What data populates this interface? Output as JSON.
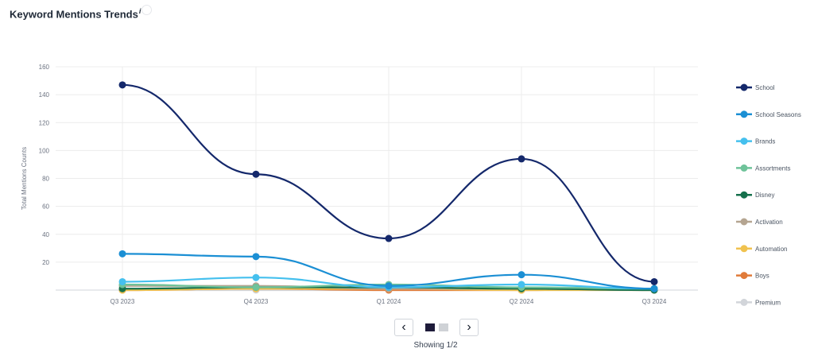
{
  "title": "Keyword Mentions Trends",
  "info_mark": "i",
  "pagination": {
    "showing": "Showing 1/2",
    "prev_icon": "chevron-left-icon",
    "next_icon": "chevron-right-icon",
    "current_page": 1,
    "total_pages": 2
  },
  "chart_data": {
    "type": "line",
    "ylabel": "Total Mentions Counts",
    "xlabel": "",
    "categories": [
      "Q3 2023",
      "Q4 2023",
      "Q1 2024",
      "Q2 2024",
      "Q3 2024"
    ],
    "ylim": [
      0,
      160
    ],
    "yticks": [
      20,
      40,
      60,
      80,
      100,
      120,
      140,
      160
    ],
    "grid": true,
    "legend_position": "right",
    "series": [
      {
        "name": "School",
        "color": "#14286b",
        "values": [
          147,
          83,
          37,
          94,
          6
        ]
      },
      {
        "name": "School Seasons",
        "color": "#1b8fd4",
        "values": [
          26,
          24,
          3,
          11,
          1
        ]
      },
      {
        "name": "Brands",
        "color": "#45c0ee",
        "values": [
          6,
          9,
          2,
          4,
          1
        ]
      },
      {
        "name": "Assortments",
        "color": "#6fc39a",
        "values": [
          4,
          2,
          4,
          2,
          1
        ]
      },
      {
        "name": "Disney",
        "color": "#15704c",
        "values": [
          1,
          2,
          2,
          1,
          0
        ]
      },
      {
        "name": "Activation",
        "color": "#b5a591",
        "values": [
          3,
          3,
          1,
          1,
          0
        ]
      },
      {
        "name": "Automation",
        "color": "#f0c24f",
        "values": [
          0,
          1,
          1,
          0,
          0
        ]
      },
      {
        "name": "Boys",
        "color": "#e07b3a",
        "values": [
          0,
          1,
          0,
          0,
          1
        ]
      },
      {
        "name": "Premium",
        "color": "#d2d5da",
        "values": [
          0,
          0,
          0,
          0,
          0
        ]
      }
    ]
  }
}
